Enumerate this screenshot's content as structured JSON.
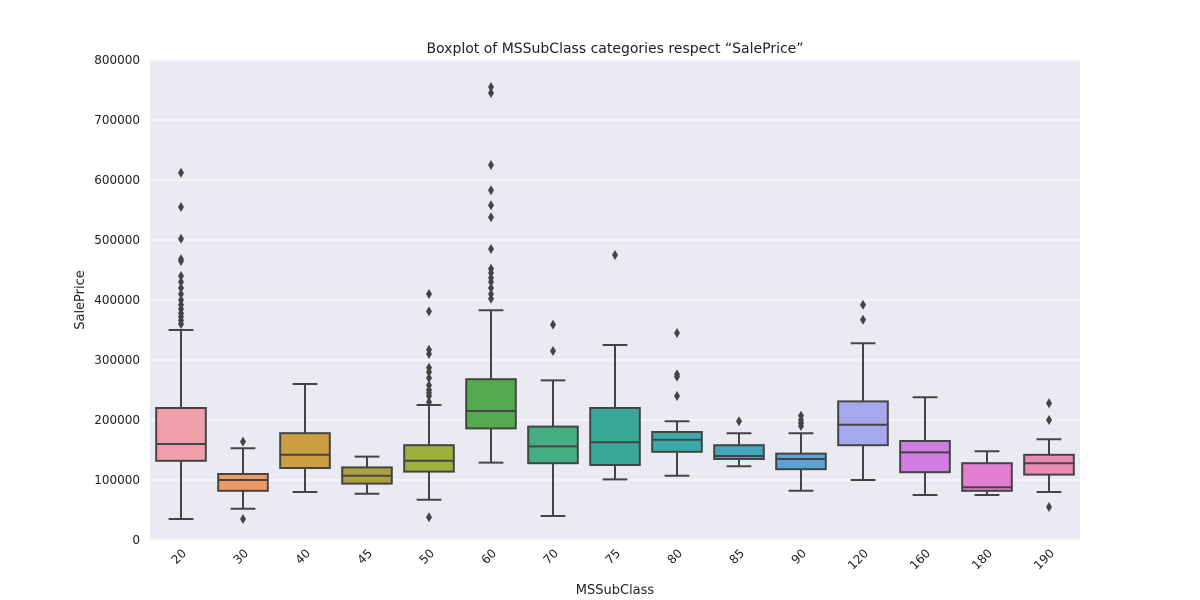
{
  "chart_data": {
    "type": "boxplot",
    "title": "Boxplot of MSSubClass categories respect “SalePrice”",
    "xlabel": "MSSubClass",
    "ylabel": "SalePrice",
    "ylim": [
      0,
      800000
    ],
    "yticks": [
      "0",
      "100000",
      "200000",
      "300000",
      "400000",
      "500000",
      "600000",
      "700000",
      "800000"
    ],
    "grid": true,
    "categories": [
      "20",
      "30",
      "40",
      "45",
      "50",
      "60",
      "70",
      "75",
      "80",
      "85",
      "90",
      "120",
      "160",
      "180",
      "190"
    ],
    "boxes": [
      {
        "category": "20",
        "color": "#f0a0aa",
        "whisker_low": 35000,
        "q1": 132000,
        "median": 160000,
        "q3": 220000,
        "whisker_high": 350000,
        "outliers": [
          360000,
          366000,
          372000,
          378000,
          385000,
          392000,
          400000,
          410000,
          420000,
          430000,
          440000,
          465000,
          468000,
          502000,
          555000,
          612000
        ]
      },
      {
        "category": "30",
        "color": "#ef9a66",
        "whisker_low": 52000,
        "q1": 82000,
        "median": 100000,
        "q3": 110000,
        "whisker_high": 153000,
        "outliers": [
          35000,
          164000
        ]
      },
      {
        "category": "40",
        "color": "#cd9f43",
        "whisker_low": 80000,
        "q1": 120000,
        "median": 142000,
        "q3": 178000,
        "whisker_high": 260000,
        "outliers": []
      },
      {
        "category": "45",
        "color": "#aba13e",
        "whisker_low": 77000,
        "q1": 94000,
        "median": 107000,
        "q3": 121000,
        "whisker_high": 139000,
        "outliers": []
      },
      {
        "category": "50",
        "color": "#9faf3c",
        "whisker_low": 67000,
        "q1": 114000,
        "median": 132000,
        "q3": 158000,
        "whisker_high": 225000,
        "outliers": [
          38000,
          230000,
          240000,
          245000,
          250000,
          258000,
          270000,
          280000,
          287000,
          310000,
          317000,
          381000,
          410000
        ]
      },
      {
        "category": "60",
        "color": "#55aa50",
        "whisker_low": 129000,
        "q1": 186000,
        "median": 215000,
        "q3": 268000,
        "whisker_high": 383000,
        "outliers": [
          402000,
          410000,
          420000,
          430000,
          437000,
          445000,
          452000,
          485000,
          538000,
          558000,
          583000,
          625000,
          745000,
          755000
        ]
      },
      {
        "category": "70",
        "color": "#45ad82",
        "whisker_low": 40000,
        "q1": 128000,
        "median": 156000,
        "q3": 189000,
        "whisker_high": 266000,
        "outliers": [
          315000,
          359000
        ]
      },
      {
        "category": "75",
        "color": "#3aa898",
        "whisker_low": 101000,
        "q1": 125000,
        "median": 163000,
        "q3": 220000,
        "whisker_high": 325000,
        "outliers": [
          475000
        ]
      },
      {
        "category": "80",
        "color": "#3ea9ab",
        "whisker_low": 107000,
        "q1": 147000,
        "median": 167000,
        "q3": 180000,
        "whisker_high": 198000,
        "outliers": [
          240000,
          272000,
          276000,
          345000
        ]
      },
      {
        "category": "85",
        "color": "#42a6bc",
        "whisker_low": 123000,
        "q1": 135000,
        "median": 140000,
        "q3": 158000,
        "whisker_high": 178000,
        "outliers": [
          198000
        ]
      },
      {
        "category": "90",
        "color": "#5aa3d6",
        "whisker_low": 82000,
        "q1": 118000,
        "median": 135000,
        "q3": 144000,
        "whisker_high": 178000,
        "outliers": [
          190000,
          195000,
          200000,
          207000
        ]
      },
      {
        "category": "120",
        "color": "#a6a8ed",
        "whisker_low": 100000,
        "q1": 158000,
        "median": 192000,
        "q3": 231000,
        "whisker_high": 328000,
        "outliers": [
          367000,
          392000
        ]
      },
      {
        "category": "160",
        "color": "#d27de4",
        "whisker_low": 75000,
        "q1": 113000,
        "median": 146000,
        "q3": 165000,
        "whisker_high": 238000,
        "outliers": []
      },
      {
        "category": "180",
        "color": "#e37fd1",
        "whisker_low": 75000,
        "q1": 82000,
        "median": 88000,
        "q3": 128000,
        "whisker_high": 148000,
        "outliers": []
      },
      {
        "category": "190",
        "color": "#ea8bb2",
        "whisker_low": 80000,
        "q1": 109000,
        "median": 128000,
        "q3": 142000,
        "whisker_high": 168000,
        "outliers": [
          55000,
          200000,
          228000
        ]
      }
    ],
    "colors": {
      "plot_background": "#eaeaf2",
      "grid": "#ffffff",
      "line": "#444444"
    }
  }
}
